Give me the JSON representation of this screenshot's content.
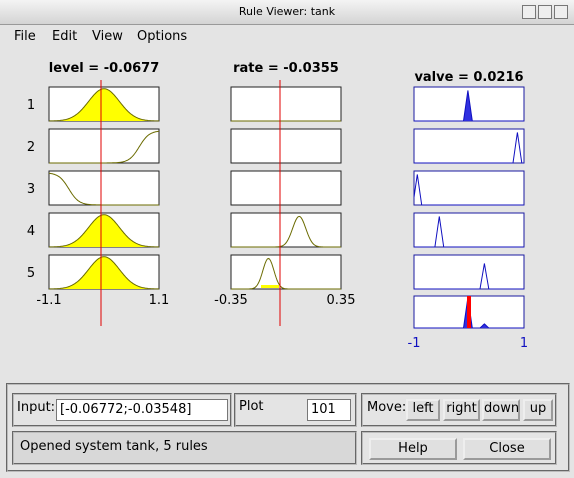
{
  "window": {
    "title": "Rule Viewer: tank"
  },
  "menu": [
    "File",
    "Edit",
    "View",
    "Options"
  ],
  "inputs": [
    {
      "label": "level = -0.0677",
      "min": "-1.1",
      "max": "1.1"
    },
    {
      "label": "rate = -0.0355",
      "min": "-0.35",
      "max": "0.35"
    }
  ],
  "output": {
    "label": "valve = 0.0216",
    "min": "-1",
    "max": "1"
  },
  "rules": [
    "1",
    "2",
    "3",
    "4",
    "5"
  ],
  "controls": {
    "input_label": "Input:",
    "input_value": "[-0.06772;-0.03548]",
    "plot_label": "Plot",
    "plot_points": "101",
    "move_label": "Move:",
    "move_buttons": [
      "left",
      "right",
      "down",
      "up"
    ],
    "status": "Opened system tank, 5 rules",
    "help": "Help",
    "close": "Close"
  }
}
